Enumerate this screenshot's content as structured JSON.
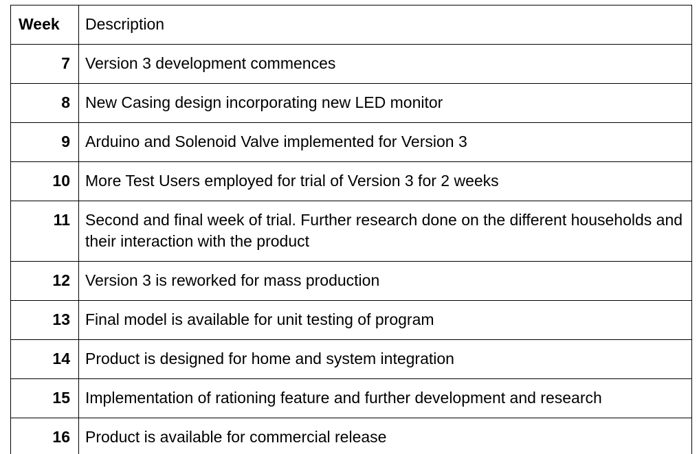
{
  "table": {
    "headers": {
      "week": "Week",
      "description": "Description"
    },
    "rows": [
      {
        "week": "7",
        "description": "Version 3 development commences"
      },
      {
        "week": "8",
        "description": "New Casing design incorporating new LED monitor"
      },
      {
        "week": "9",
        "description": "Arduino and Solenoid Valve implemented for Version 3"
      },
      {
        "week": "10",
        "description": "More Test Users employed for trial of Version 3 for 2 weeks"
      },
      {
        "week": "11",
        "description": "Second and final week of trial. Further research done on the different households and their interaction with the product"
      },
      {
        "week": "12",
        "description": "Version 3 is reworked for mass production"
      },
      {
        "week": "13",
        "description": "Final model is available for unit testing of program"
      },
      {
        "week": "14",
        "description": "Product is designed for home and system integration"
      },
      {
        "week": "15",
        "description": "Implementation of rationing feature and further development and research"
      },
      {
        "week": "16",
        "description": "Product is available for commercial release"
      }
    ]
  }
}
